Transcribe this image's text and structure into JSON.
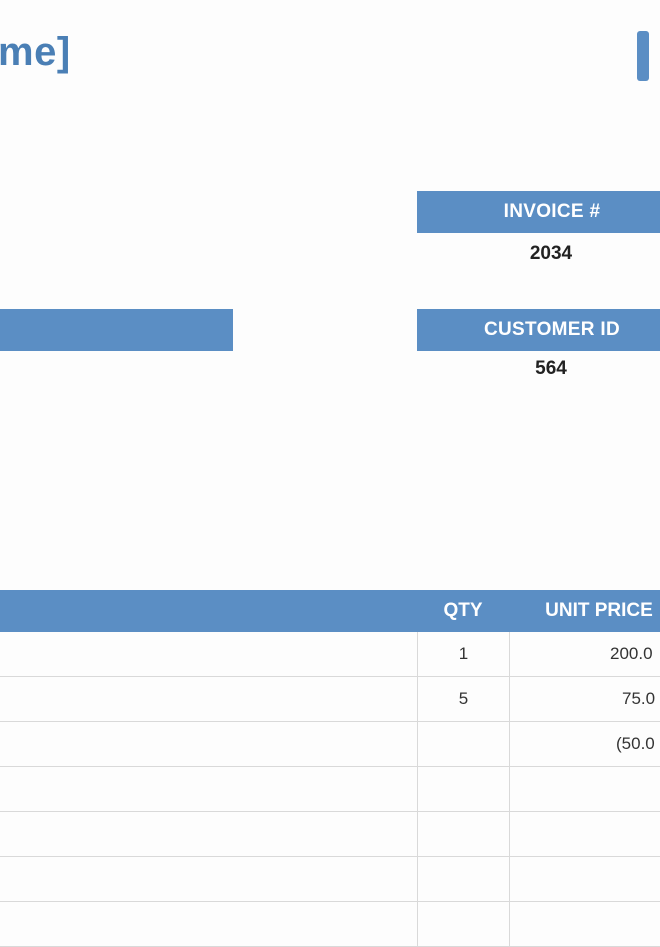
{
  "company": {
    "name_fragment": "me]"
  },
  "invoice": {
    "invoice_label": "INVOICE #",
    "invoice_number": "2034",
    "customer_label": "CUSTOMER ID",
    "customer_id": "564"
  },
  "table": {
    "headers": {
      "qty": "QTY",
      "unit_price": "UNIT PRICE"
    },
    "rows": [
      {
        "qty": "1",
        "unit_price": "200.0"
      },
      {
        "qty": "5",
        "unit_price": "75.0"
      },
      {
        "qty": "",
        "unit_price": "(50.0"
      },
      {
        "qty": "",
        "unit_price": ""
      },
      {
        "qty": "",
        "unit_price": ""
      },
      {
        "qty": "",
        "unit_price": ""
      },
      {
        "qty": "",
        "unit_price": ""
      }
    ]
  },
  "colors": {
    "accent": "#5b8ec4",
    "title": "#4a7fb5"
  }
}
